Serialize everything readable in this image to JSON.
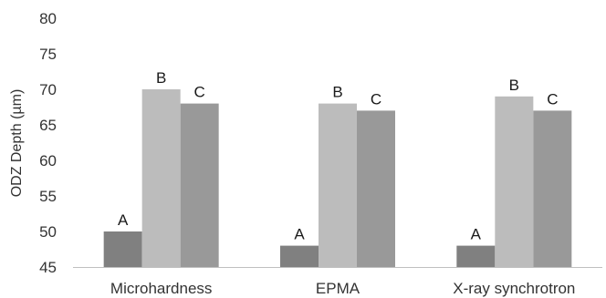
{
  "chart_data": {
    "type": "bar",
    "title": "",
    "xlabel": "",
    "ylabel": "ODZ Depth (µm)",
    "ylim": [
      45,
      80
    ],
    "yticks": [
      45,
      50,
      55,
      60,
      65,
      70,
      75,
      80
    ],
    "grid": false,
    "legend": "none",
    "categories": [
      "Microhardness",
      "EPMA",
      "X-ray synchrotron"
    ],
    "series": [
      {
        "label": "A",
        "color": "#808080",
        "values": [
          50,
          48,
          48
        ]
      },
      {
        "label": "B",
        "color": "#bcbcbc",
        "values": [
          70,
          68,
          69
        ]
      },
      {
        "label": "C",
        "color": "#999999",
        "values": [
          68,
          67,
          67
        ]
      }
    ]
  }
}
